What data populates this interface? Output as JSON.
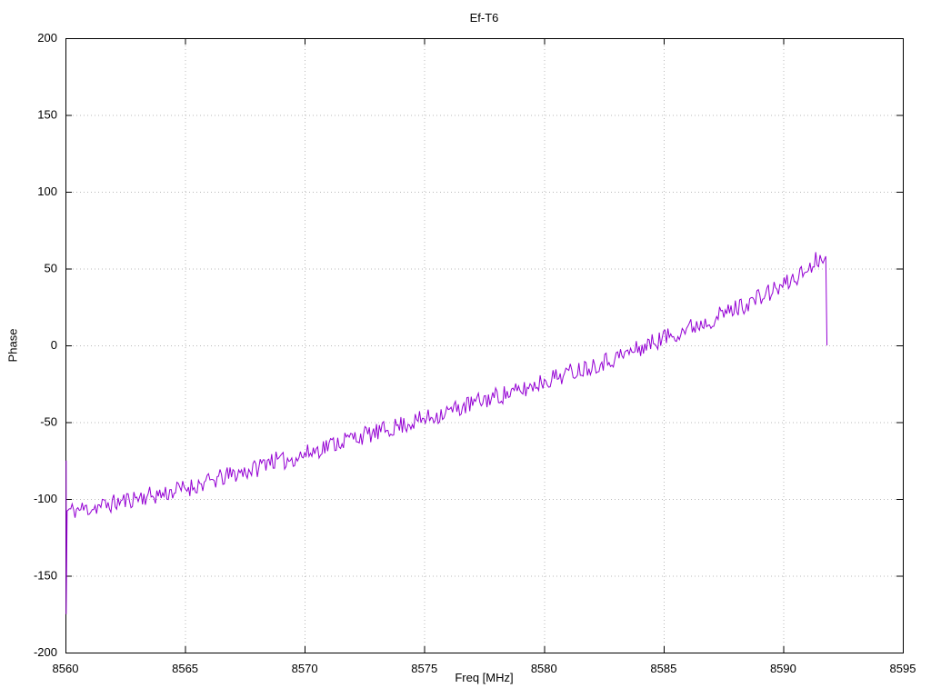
{
  "title": "Ef-T6",
  "chart_data": {
    "type": "line",
    "title": "Ef-T6",
    "xlabel": "Freq [MHz]",
    "ylabel": "Phase",
    "xlim": [
      8560,
      8595
    ],
    "ylim": [
      -200,
      200
    ],
    "xticks": [
      8560,
      8565,
      8570,
      8575,
      8580,
      8585,
      8590,
      8595
    ],
    "yticks": [
      -200,
      -150,
      -100,
      -50,
      0,
      50,
      100,
      150,
      200
    ],
    "grid": true,
    "grid_style": "dotted",
    "legend": "none",
    "line_color": "#9400d3",
    "series": [
      {
        "name": "phase",
        "description": "noisy measured phase rising roughly linearly, ends with sharp drop to 0 near 8592 MHz",
        "trend_points": [
          [
            8560.0,
            -108
          ],
          [
            8561,
            -106
          ],
          [
            8562,
            -103
          ],
          [
            8563,
            -99
          ],
          [
            8564,
            -97
          ],
          [
            8565,
            -93
          ],
          [
            8566,
            -89
          ],
          [
            8567,
            -84
          ],
          [
            8568,
            -80
          ],
          [
            8568.5,
            -74
          ],
          [
            8569,
            -76
          ],
          [
            8570,
            -71
          ],
          [
            8571,
            -65
          ],
          [
            8572,
            -60
          ],
          [
            8573,
            -57
          ],
          [
            8574,
            -52
          ],
          [
            8575,
            -48
          ],
          [
            8576,
            -43
          ],
          [
            8577,
            -38
          ],
          [
            8578,
            -33
          ],
          [
            8579,
            -30
          ],
          [
            8580,
            -23
          ],
          [
            8581,
            -18
          ],
          [
            8582,
            -13
          ],
          [
            8583,
            -8
          ],
          [
            8584,
            -2
          ],
          [
            8585,
            5
          ],
          [
            8586,
            11
          ],
          [
            8587,
            17
          ],
          [
            8588,
            24
          ],
          [
            8589,
            31
          ],
          [
            8590,
            39
          ],
          [
            8590.5,
            44
          ],
          [
            8591,
            49
          ],
          [
            8591.4,
            56
          ],
          [
            8591.7,
            60
          ]
        ],
        "noise_amplitude": 6,
        "x_step": 0.06,
        "x_start": 8560.1,
        "x_end": 8591.7,
        "start_spike": {
          "x": 8560.03,
          "y_top": -75,
          "y_bottom": -175
        },
        "end_drop": [
          [
            8591.78,
            58
          ],
          [
            8591.83,
            0
          ]
        ],
        "seed": 11
      }
    ]
  },
  "colors": {
    "line": "#9400d3",
    "grid": "#b8b8b8",
    "axis": "#000000",
    "background": "#ffffff"
  }
}
